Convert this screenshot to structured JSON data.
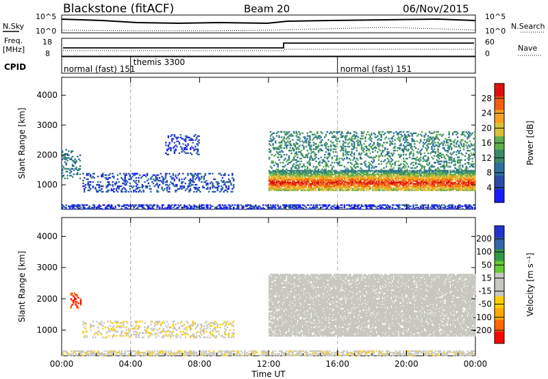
{
  "header": {
    "title": "Blackstone (fitACF)",
    "beam": "Beam 20",
    "date": "06/Nov/2015"
  },
  "summary": {
    "nsky_label": "N.Sky",
    "nsearch_label": "N.Search",
    "noise_ticks": [
      "10^5",
      "10^0"
    ],
    "freq_label": "Freq.",
    "freq_unit": "[MHz]",
    "freq_ticks": [
      "18",
      "8"
    ],
    "nave_label": "Nave",
    "nave_ticks": [
      "60",
      "0"
    ],
    "cpid_label": "CPID",
    "cpid_segments": [
      {
        "label": "normal (fast) 151",
        "start_hour": 0
      },
      {
        "label": "themis 3300",
        "start_hour": 4
      },
      {
        "label": "normal (fast) 151",
        "start_hour": 16
      }
    ]
  },
  "colors": {
    "power_scale": [
      "#1a1aff",
      "#2b4aa8",
      "#2b6f9e",
      "#3a8a6a",
      "#5fae4e",
      "#d8c23a",
      "#f5a020",
      "#f06010",
      "#e01010"
    ],
    "velocity_scale": [
      "#ff0000",
      "#ff6600",
      "#ffaa00",
      "#ffd000",
      "#c8c8c0",
      "#c8c8c0",
      "#66cc33",
      "#339944",
      "#3366aa",
      "#2233cc"
    ]
  },
  "chart_data": [
    {
      "type": "heatmap",
      "title": "",
      "xlabel": "",
      "ylabel": "Slant Range [km]",
      "x_ticks": [
        "00:00",
        "04:00",
        "08:00",
        "12:00",
        "16:00",
        "20:00",
        "00:00"
      ],
      "xlim_hours": [
        0,
        24
      ],
      "ylim": [
        180,
        4600
      ],
      "y_ticks": [
        1000,
        2000,
        3000,
        4000
      ],
      "colorbar": {
        "label": "Power [dB]",
        "ticks": [
          4,
          8,
          12,
          16,
          20,
          24,
          28
        ],
        "range": [
          0,
          32
        ]
      },
      "features": [
        {
          "name": "ground scatter band",
          "hours": [
            0,
            24
          ],
          "range_km": [
            180,
            350
          ],
          "power_db": 4
        },
        {
          "name": "early scatter",
          "hours": [
            0,
            1.1
          ],
          "range_km": [
            1200,
            2200
          ],
          "power_db": 10
        },
        {
          "name": "morning scatter",
          "hours": [
            1.2,
            10
          ],
          "range_km": [
            750,
            1400
          ],
          "power_db": 6
        },
        {
          "name": "afternoon patches",
          "hours": [
            6,
            8
          ],
          "range_km": [
            2000,
            2700
          ],
          "power_db": 5
        },
        {
          "name": "strong band",
          "hours": [
            12,
            24
          ],
          "range_km": [
            800,
            1500
          ],
          "power_db": 28
        },
        {
          "name": "upper echoes",
          "hours": [
            12,
            24
          ],
          "range_km": [
            1500,
            2800
          ],
          "power_db": 12
        }
      ]
    },
    {
      "type": "heatmap",
      "title": "",
      "xlabel": "Time UT",
      "ylabel": "Slant Range [km]",
      "x_ticks": [
        "00:00",
        "04:00",
        "08:00",
        "12:00",
        "16:00",
        "20:00",
        "00:00"
      ],
      "xlim_hours": [
        0,
        24
      ],
      "ylim": [
        180,
        4600
      ],
      "y_ticks": [
        1000,
        2000,
        3000,
        4000
      ],
      "colorbar": {
        "label": "Velocity [m s⁻¹]",
        "ticks": [
          200,
          100,
          50,
          15,
          -15,
          -50,
          -100,
          -200
        ],
        "range": [
          -250,
          250
        ]
      },
      "features": [
        {
          "name": "ground scatter band",
          "hours": [
            0,
            24
          ],
          "range_km": [
            180,
            350
          ],
          "velocity": -30
        },
        {
          "name": "early scatter",
          "hours": [
            0.5,
            1.2
          ],
          "range_km": [
            1700,
            2200
          ],
          "velocity": -200
        },
        {
          "name": "morning scatter",
          "hours": [
            1.2,
            10
          ],
          "range_km": [
            750,
            1300
          ],
          "velocity": -40
        },
        {
          "name": "strong band",
          "hours": [
            12,
            24
          ],
          "range_km": [
            800,
            2800
          ],
          "velocity": 0
        }
      ]
    }
  ]
}
